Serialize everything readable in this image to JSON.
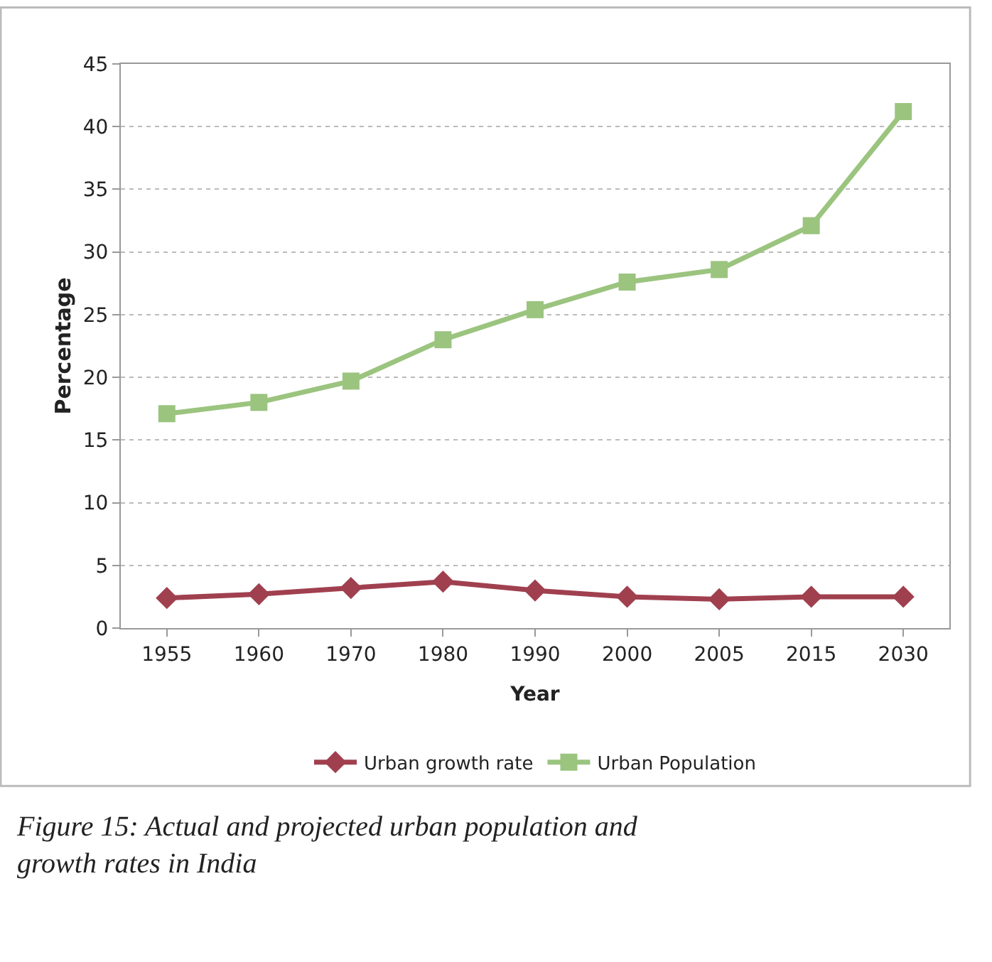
{
  "chart_data": {
    "type": "line",
    "xlabel": "Year",
    "ylabel": "Percentage",
    "categories": [
      "1955",
      "1960",
      "1970",
      "1980",
      "1990",
      "2000",
      "2005",
      "2015",
      "2030"
    ],
    "series": [
      {
        "name": "Urban growth rate",
        "color": "#a0404f",
        "marker": "diamond",
        "values": [
          2.4,
          2.7,
          3.2,
          3.7,
          3.0,
          2.5,
          2.3,
          2.5,
          2.5
        ]
      },
      {
        "name": "Urban Population",
        "color": "#9bc47f",
        "marker": "square",
        "values": [
          17.1,
          18.0,
          19.7,
          23.0,
          25.4,
          27.6,
          28.6,
          32.1,
          41.2
        ]
      }
    ],
    "ylim": [
      0,
      45
    ],
    "yticks": [
      0,
      5,
      10,
      15,
      20,
      25,
      30,
      35,
      40,
      45
    ],
    "grid": "y",
    "legend": "bottom",
    "line_style": "solid",
    "annotations": [
      "Figure 15: Actual and projected urban population and growth rates in India"
    ]
  }
}
